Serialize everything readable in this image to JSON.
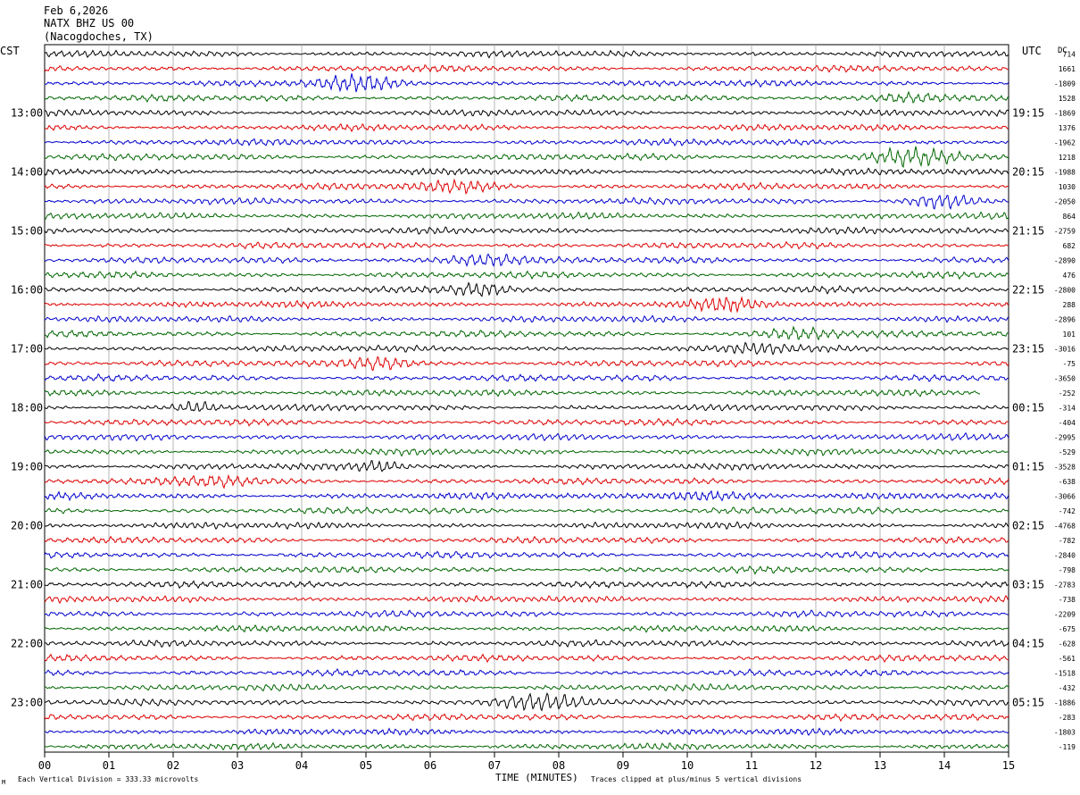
{
  "header": {
    "date": "Feb 6,2026",
    "station": "NATX BHZ US 00",
    "location": "(Nacogdoches, TX)"
  },
  "left_timezone": "CST",
  "right_timezone": "UTC",
  "dc_label": "DC",
  "footer": {
    "scale_note": "Each Vertical Division =  333.33 microvolts",
    "xlabel": "TIME (MINUTES)",
    "clip_note": "Traces clipped at plus/minus 5 vertical divisions"
  },
  "colors": {
    "trace_cycle": [
      "#000000",
      "#dd0000",
      "#0000cc",
      "#006600"
    ],
    "grid": "#999999"
  },
  "chart_data": {
    "type": "line",
    "subtype": "helicorder",
    "xlim": [
      0,
      15
    ],
    "x_ticks": [
      "00",
      "01",
      "02",
      "03",
      "04",
      "05",
      "06",
      "07",
      "08",
      "09",
      "10",
      "11",
      "12",
      "13",
      "14",
      "15"
    ],
    "num_lines": 48,
    "minutes_per_line": 15,
    "left_hour_labels": [
      "13:00",
      "14:00",
      "15:00",
      "16:00",
      "17:00",
      "18:00",
      "19:00",
      "20:00",
      "21:00",
      "22:00",
      "23:00"
    ],
    "right_hour_labels": [
      "19:15",
      "20:15",
      "21:15",
      "22:15",
      "23:15",
      "00:15",
      "01:15",
      "02:15",
      "03:15",
      "04:15",
      "05:15"
    ],
    "hour_label_start_line": 4,
    "dc_offsets": [
      "714",
      "1661",
      "-1809",
      "1528",
      "-1869",
      "1376",
      "-1962",
      "1218",
      "-1988",
      "1030",
      "-2050",
      "864",
      "-2759",
      "682",
      "-2890",
      "476",
      "-2800",
      "288",
      "-2896",
      "101",
      "-3016",
      "-75",
      "-3650",
      "-252",
      "-314",
      "-404",
      "-2995",
      "-529",
      "-3528",
      "-638",
      "-3066",
      "-742",
      "-4768",
      "-782",
      "-2840",
      "-798",
      "-2783",
      "-738",
      "-2209",
      "-675",
      "-628",
      "-561",
      "-1518",
      "-432",
      "-1886",
      "-283",
      "-1803",
      "-119"
    ]
  }
}
